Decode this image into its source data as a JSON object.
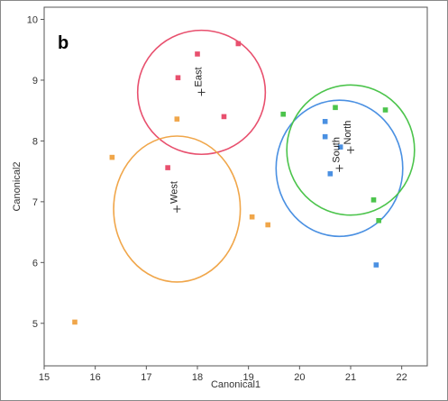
{
  "chart_data": {
    "type": "scatter",
    "panel_label": "b",
    "xlabel": "Canonical1",
    "ylabel": "Canonical2",
    "xlim": [
      15,
      22.5
    ],
    "ylim": [
      4.3,
      10.2
    ],
    "xticks": [
      15,
      16,
      17,
      18,
      19,
      20,
      21,
      22
    ],
    "yticks": [
      5,
      6,
      7,
      8,
      9,
      10
    ],
    "grid": false,
    "legend": "none",
    "series": [
      {
        "name": "East",
        "color": "#e8506e",
        "points": [
          [
            18.0,
            9.43
          ],
          [
            18.8,
            9.6
          ],
          [
            17.62,
            9.04
          ],
          [
            18.52,
            8.4
          ],
          [
            17.42,
            7.56
          ]
        ],
        "centroid": [
          18.08,
          8.8
        ],
        "ellipse": {
          "cx": 18.08,
          "cy": 8.8,
          "rx": 1.25,
          "ry": 1.02
        }
      },
      {
        "name": "West",
        "color": "#f0a64a",
        "points": [
          [
            17.6,
            8.36
          ],
          [
            16.33,
            7.73
          ],
          [
            19.07,
            6.75
          ],
          [
            19.38,
            6.62
          ],
          [
            15.6,
            5.02
          ]
        ],
        "centroid": [
          17.6,
          6.88
        ],
        "ellipse": {
          "cx": 17.6,
          "cy": 6.88,
          "rx": 1.24,
          "ry": 1.2
        }
      },
      {
        "name": "South",
        "color": "#4a90e2",
        "points": [
          [
            20.5,
            8.32
          ],
          [
            20.5,
            8.07
          ],
          [
            20.8,
            7.9
          ],
          [
            20.6,
            7.46
          ],
          [
            21.5,
            5.96
          ]
        ],
        "centroid": [
          20.78,
          7.55
        ],
        "ellipse": {
          "cx": 20.78,
          "cy": 7.55,
          "rx": 1.24,
          "ry": 1.12
        }
      },
      {
        "name": "North",
        "color": "#4cc44c",
        "points": [
          [
            19.68,
            8.44
          ],
          [
            20.7,
            8.55
          ],
          [
            21.68,
            8.51
          ],
          [
            21.45,
            7.03
          ],
          [
            21.55,
            6.69
          ]
        ],
        "centroid": [
          21.0,
          7.85
        ],
        "ellipse": {
          "cx": 21.0,
          "cy": 7.85,
          "rx": 1.25,
          "ry": 1.07
        }
      }
    ]
  }
}
